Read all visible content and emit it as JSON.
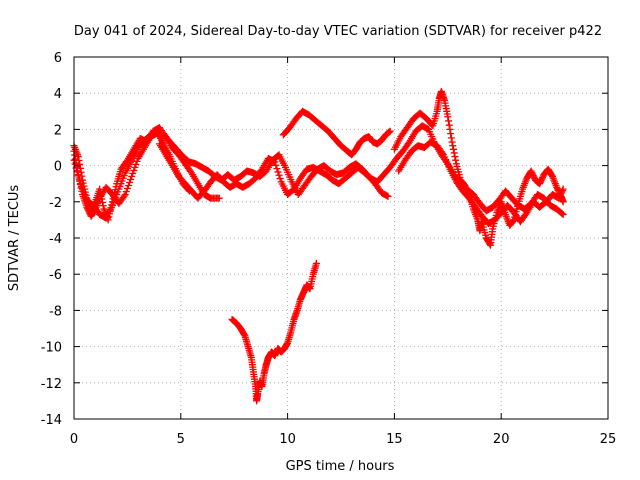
{
  "chart_data": {
    "type": "scatter",
    "title": "Day 041 of 2024, Sidereal Day-to-day VTEC variation (SDTVAR) for receiver p422",
    "xlabel": "GPS time / hours",
    "ylabel": "SDTVAR / TECUs",
    "xlim": [
      0,
      25
    ],
    "ylim": [
      -14,
      6
    ],
    "xticks": [
      "0",
      "5",
      "10",
      "15",
      "20",
      "25"
    ],
    "yticks": [
      "6",
      "4",
      "2",
      "0",
      "-2",
      "-4",
      "-6",
      "-8",
      "-10",
      "-12",
      "-14"
    ],
    "grid": true,
    "marker": "plus",
    "color": "#ff0000",
    "series": [
      {
        "name": "s1",
        "points": [
          [
            0.0,
            1.1
          ],
          [
            0.2,
            0.5
          ],
          [
            0.4,
            -0.8
          ],
          [
            0.6,
            -1.8
          ],
          [
            0.8,
            -2.6
          ],
          [
            1.0,
            -2.0
          ],
          [
            1.2,
            -1.3
          ],
          [
            1.4,
            -2.4
          ],
          [
            1.6,
            -3.0
          ],
          [
            1.8,
            -2.0
          ],
          [
            2.0,
            -1.0
          ],
          [
            2.2,
            -0.2
          ],
          [
            2.5,
            0.3
          ],
          [
            2.8,
            0.9
          ],
          [
            3.1,
            1.5
          ],
          [
            3.4,
            1.3
          ],
          [
            3.7,
            1.9
          ],
          [
            4.0,
            2.1
          ],
          [
            4.3,
            1.6
          ],
          [
            4.6,
            1.0
          ],
          [
            4.9,
            0.6
          ],
          [
            5.2,
            0.1
          ],
          [
            5.5,
            -0.4
          ],
          [
            5.8,
            -1.0
          ],
          [
            6.1,
            -1.6
          ],
          [
            6.4,
            -1.8
          ],
          [
            6.8,
            -1.8
          ]
        ]
      },
      {
        "name": "s2",
        "points": [
          [
            0.0,
            0.8
          ],
          [
            0.2,
            -0.5
          ],
          [
            0.4,
            -1.6
          ],
          [
            0.6,
            -2.3
          ],
          [
            0.8,
            -2.8
          ],
          [
            1.0,
            -2.4
          ],
          [
            1.2,
            -1.8
          ],
          [
            1.5,
            -1.2
          ],
          [
            1.8,
            -1.6
          ],
          [
            2.1,
            -2.1
          ],
          [
            2.4,
            -1.6
          ],
          [
            2.7,
            -0.6
          ],
          [
            3.0,
            0.4
          ],
          [
            3.3,
            1.0
          ],
          [
            3.6,
            1.6
          ],
          [
            3.9,
            1.8
          ],
          [
            4.2,
            1.2
          ],
          [
            4.5,
            0.5
          ],
          [
            4.8,
            -0.3
          ],
          [
            5.1,
            -1.0
          ],
          [
            5.4,
            -1.4
          ]
        ]
      },
      {
        "name": "s3",
        "points": [
          [
            0.0,
            0.3
          ],
          [
            0.3,
            -1.0
          ],
          [
            0.6,
            -1.9
          ],
          [
            0.9,
            -2.2
          ],
          [
            1.2,
            -2.7
          ],
          [
            1.5,
            -2.9
          ],
          [
            1.8,
            -2.2
          ],
          [
            2.1,
            -1.3
          ],
          [
            2.4,
            -0.4
          ],
          [
            2.7,
            0.3
          ],
          [
            3.0,
            1.0
          ],
          [
            3.3,
            1.4
          ],
          [
            3.6,
            1.7
          ],
          [
            3.9,
            1.9
          ],
          [
            4.2,
            1.7
          ],
          [
            4.5,
            1.3
          ],
          [
            4.8,
            0.9
          ],
          [
            5.1,
            0.5
          ],
          [
            5.4,
            0.2
          ],
          [
            5.7,
            0.1
          ],
          [
            6.0,
            -0.1
          ],
          [
            6.3,
            -0.3
          ],
          [
            6.6,
            -0.6
          ],
          [
            6.9,
            -0.8
          ],
          [
            7.2,
            -0.5
          ],
          [
            7.5,
            -0.8
          ],
          [
            7.8,
            -0.6
          ],
          [
            8.1,
            -0.3
          ],
          [
            8.4,
            -0.4
          ],
          [
            8.7,
            -0.6
          ],
          [
            9.0,
            -0.3
          ],
          [
            9.3,
            0.3
          ],
          [
            9.6,
            0.6
          ],
          [
            9.9,
            -0.1
          ],
          [
            10.2,
            -0.9
          ],
          [
            10.5,
            -1.6
          ],
          [
            10.8,
            -1.1
          ],
          [
            11.1,
            -0.6
          ],
          [
            11.4,
            -0.2
          ],
          [
            11.7,
            0.0
          ],
          [
            12.0,
            -0.3
          ],
          [
            12.3,
            -0.5
          ],
          [
            12.6,
            -0.4
          ],
          [
            12.9,
            -0.1
          ],
          [
            13.2,
            0.1
          ],
          [
            13.5,
            -0.2
          ],
          [
            13.8,
            -0.6
          ],
          [
            14.1,
            -1.0
          ],
          [
            14.4,
            -1.5
          ],
          [
            14.7,
            -1.7
          ]
        ]
      },
      {
        "name": "s4",
        "points": [
          [
            4.0,
            1.2
          ],
          [
            4.3,
            0.6
          ],
          [
            4.6,
            0.0
          ],
          [
            4.9,
            -0.6
          ],
          [
            5.2,
            -1.0
          ],
          [
            5.5,
            -1.4
          ],
          [
            5.8,
            -1.8
          ],
          [
            6.1,
            -1.4
          ],
          [
            6.4,
            -0.9
          ],
          [
            6.7,
            -0.5
          ],
          [
            7.0,
            -0.9
          ],
          [
            7.3,
            -1.2
          ],
          [
            7.6,
            -1.0
          ],
          [
            7.9,
            -1.2
          ],
          [
            8.2,
            -1.0
          ],
          [
            8.5,
            -0.7
          ],
          [
            8.8,
            -0.2
          ],
          [
            9.1,
            0.4
          ],
          [
            9.4,
            0.2
          ],
          [
            9.7,
            -0.9
          ],
          [
            10.0,
            -1.6
          ],
          [
            10.3,
            -1.3
          ],
          [
            10.6,
            -0.7
          ],
          [
            10.9,
            -0.2
          ],
          [
            11.2,
            -0.1
          ],
          [
            11.5,
            -0.3
          ],
          [
            11.8,
            -0.5
          ],
          [
            12.1,
            -0.8
          ],
          [
            12.4,
            -1.0
          ],
          [
            12.7,
            -0.7
          ],
          [
            13.0,
            -0.4
          ],
          [
            13.3,
            -0.1
          ],
          [
            13.6,
            -0.4
          ],
          [
            13.9,
            -0.7
          ],
          [
            14.2,
            -0.9
          ],
          [
            14.5,
            -0.5
          ],
          [
            14.8,
            -0.1
          ],
          [
            15.1,
            0.4
          ],
          [
            15.4,
            0.8
          ],
          [
            15.7,
            1.3
          ],
          [
            16.0,
            1.9
          ],
          [
            16.3,
            2.2
          ],
          [
            16.6,
            2.0
          ],
          [
            16.9,
            1.2
          ],
          [
            17.2,
            0.6
          ],
          [
            17.5,
            0.1
          ],
          [
            17.8,
            -0.5
          ],
          [
            18.1,
            -1.0
          ],
          [
            18.4,
            -1.3
          ],
          [
            18.7,
            -1.6
          ],
          [
            19.0,
            -2.1
          ],
          [
            19.3,
            -2.5
          ],
          [
            19.6,
            -2.3
          ],
          [
            19.9,
            -1.9
          ],
          [
            20.2,
            -1.4
          ],
          [
            20.5,
            -1.8
          ],
          [
            20.8,
            -2.2
          ],
          [
            21.1,
            -2.4
          ],
          [
            21.4,
            -2.1
          ],
          [
            21.7,
            -1.6
          ],
          [
            22.0,
            -1.8
          ],
          [
            22.3,
            -2.2
          ],
          [
            22.6,
            -2.4
          ],
          [
            22.9,
            -2.7
          ]
        ]
      },
      {
        "name": "s5",
        "points": [
          [
            9.8,
            1.7
          ],
          [
            10.1,
            2.1
          ],
          [
            10.4,
            2.6
          ],
          [
            10.7,
            3.0
          ],
          [
            11.0,
            2.8
          ],
          [
            11.3,
            2.5
          ],
          [
            11.6,
            2.2
          ],
          [
            11.9,
            1.9
          ],
          [
            12.2,
            1.5
          ],
          [
            12.5,
            1.1
          ],
          [
            12.8,
            0.8
          ],
          [
            13.0,
            0.6
          ],
          [
            13.2,
            0.9
          ],
          [
            13.4,
            1.3
          ],
          [
            13.6,
            1.5
          ],
          [
            13.8,
            1.6
          ],
          [
            14.0,
            1.3
          ],
          [
            14.2,
            1.2
          ],
          [
            14.4,
            1.4
          ],
          [
            14.6,
            1.7
          ],
          [
            14.8,
            1.9
          ]
        ]
      },
      {
        "name": "s6",
        "points": [
          [
            15.0,
            0.9
          ],
          [
            15.3,
            1.6
          ],
          [
            15.6,
            2.1
          ],
          [
            15.9,
            2.6
          ],
          [
            16.2,
            2.9
          ],
          [
            16.5,
            2.6
          ],
          [
            16.8,
            2.2
          ],
          [
            17.0,
            3.0
          ],
          [
            17.1,
            3.7
          ],
          [
            17.2,
            4.1
          ],
          [
            17.35,
            3.6
          ],
          [
            17.5,
            2.7
          ],
          [
            17.7,
            1.3
          ],
          [
            17.9,
            0.1
          ],
          [
            18.1,
            -0.8
          ],
          [
            18.3,
            -1.1
          ],
          [
            18.5,
            -1.6
          ],
          [
            18.7,
            -2.4
          ],
          [
            18.9,
            -3.0
          ],
          [
            19.0,
            -3.6
          ],
          [
            19.1,
            -3.1
          ],
          [
            19.3,
            -4.0
          ],
          [
            19.5,
            -4.4
          ],
          [
            19.6,
            -3.5
          ],
          [
            19.8,
            -2.6
          ],
          [
            20.0,
            -2.0
          ],
          [
            20.2,
            -2.7
          ],
          [
            20.4,
            -3.3
          ],
          [
            20.6,
            -3.0
          ],
          [
            20.8,
            -2.1
          ],
          [
            21.0,
            -1.3
          ],
          [
            21.2,
            -0.7
          ],
          [
            21.4,
            -0.3
          ],
          [
            21.6,
            -0.8
          ],
          [
            21.8,
            -1.0
          ],
          [
            22.0,
            -0.5
          ],
          [
            22.2,
            -0.2
          ],
          [
            22.4,
            -0.6
          ],
          [
            22.6,
            -1.2
          ],
          [
            22.8,
            -1.7
          ],
          [
            22.9,
            -2.0
          ]
        ]
      },
      {
        "name": "s7",
        "points": [
          [
            15.2,
            -0.3
          ],
          [
            15.5,
            0.3
          ],
          [
            15.8,
            0.8
          ],
          [
            16.1,
            1.1
          ],
          [
            16.4,
            1.0
          ],
          [
            16.7,
            1.3
          ],
          [
            17.0,
            1.1
          ],
          [
            17.3,
            0.6
          ],
          [
            17.6,
            -0.2
          ],
          [
            17.9,
            -0.9
          ],
          [
            18.2,
            -1.4
          ],
          [
            18.5,
            -1.8
          ],
          [
            18.8,
            -2.3
          ],
          [
            19.1,
            -2.8
          ],
          [
            19.4,
            -3.2
          ],
          [
            19.7,
            -3.0
          ],
          [
            20.0,
            -2.6
          ],
          [
            20.3,
            -2.2
          ],
          [
            20.6,
            -2.6
          ],
          [
            20.9,
            -3.1
          ],
          [
            21.2,
            -2.6
          ],
          [
            21.5,
            -2.0
          ],
          [
            21.8,
            -2.3
          ],
          [
            22.1,
            -2.0
          ],
          [
            22.4,
            -1.6
          ],
          [
            22.7,
            -1.8
          ],
          [
            22.9,
            -1.3
          ]
        ]
      },
      {
        "name": "s8",
        "points": [
          [
            7.4,
            -8.5
          ],
          [
            7.6,
            -8.7
          ],
          [
            7.8,
            -9.0
          ],
          [
            8.0,
            -9.4
          ],
          [
            8.15,
            -10.0
          ],
          [
            8.3,
            -10.6
          ],
          [
            8.4,
            -11.4
          ],
          [
            8.5,
            -12.2
          ],
          [
            8.55,
            -13.0
          ],
          [
            8.6,
            -12.6
          ],
          [
            8.7,
            -11.9
          ],
          [
            8.8,
            -12.2
          ],
          [
            8.9,
            -11.5
          ],
          [
            9.0,
            -11.0
          ],
          [
            9.1,
            -10.6
          ],
          [
            9.25,
            -10.3
          ],
          [
            9.4,
            -10.5
          ],
          [
            9.55,
            -10.1
          ],
          [
            9.7,
            -10.3
          ],
          [
            9.85,
            -10.1
          ],
          [
            10.0,
            -9.8
          ],
          [
            10.15,
            -9.2
          ],
          [
            10.3,
            -8.5
          ],
          [
            10.45,
            -8.0
          ],
          [
            10.6,
            -7.4
          ],
          [
            10.75,
            -7.0
          ],
          [
            10.9,
            -6.6
          ],
          [
            11.05,
            -6.8
          ],
          [
            11.2,
            -6.0
          ],
          [
            11.35,
            -5.4
          ]
        ]
      }
    ]
  }
}
